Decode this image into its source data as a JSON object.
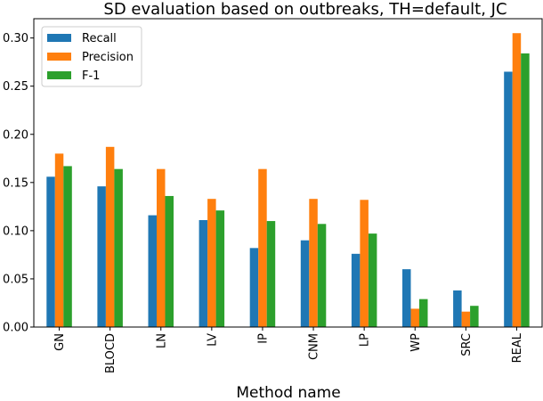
{
  "chart_data": {
    "type": "bar",
    "title": "SD evaluation based on outbreaks, TH=default, JC",
    "xlabel": "Method name",
    "ylabel": "",
    "ylim": [
      0,
      0.32
    ],
    "yticks": [
      "0.00",
      "0.05",
      "0.10",
      "0.15",
      "0.20",
      "0.25",
      "0.30"
    ],
    "categories": [
      "GN",
      "BLOCD",
      "LN",
      "LV",
      "IP",
      "CNM",
      "LP",
      "WP",
      "SRC",
      "REAL"
    ],
    "legend_position": "top-left",
    "grid": false,
    "series": [
      {
        "name": "Recall",
        "color": "#1f77b4",
        "values": [
          0.156,
          0.146,
          0.116,
          0.111,
          0.082,
          0.09,
          0.076,
          0.06,
          0.038,
          0.265
        ]
      },
      {
        "name": "Precision",
        "color": "#ff7f0e",
        "values": [
          0.18,
          0.187,
          0.164,
          0.133,
          0.164,
          0.133,
          0.132,
          0.019,
          0.016,
          0.305
        ]
      },
      {
        "name": "F-1",
        "color": "#2ca02c",
        "values": [
          0.167,
          0.164,
          0.136,
          0.121,
          0.11,
          0.107,
          0.097,
          0.029,
          0.022,
          0.284
        ]
      }
    ]
  }
}
